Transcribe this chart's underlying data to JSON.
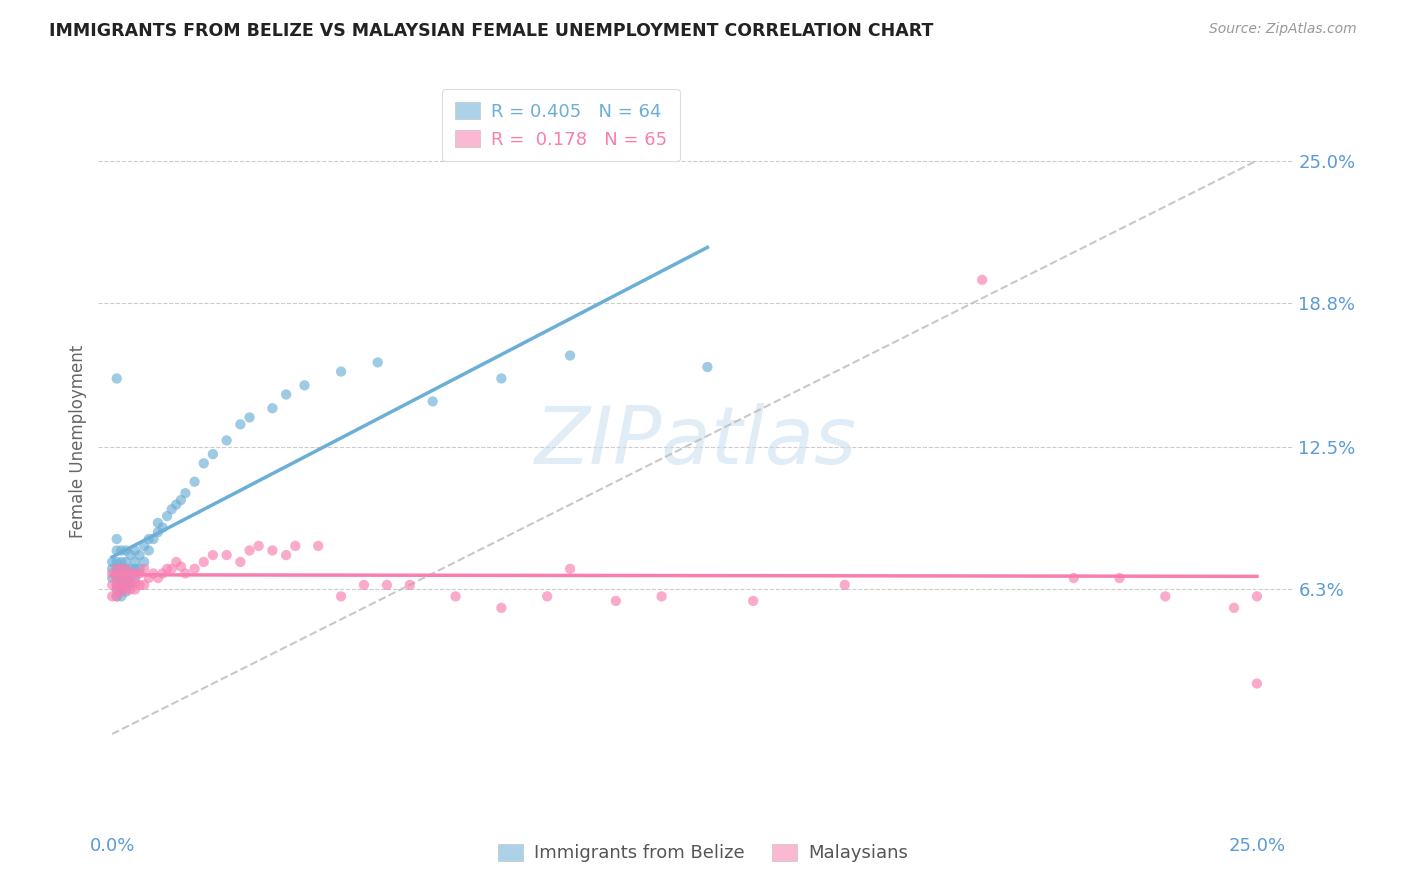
{
  "title": "IMMIGRANTS FROM BELIZE VS MALAYSIAN FEMALE UNEMPLOYMENT CORRELATION CHART",
  "source": "Source: ZipAtlas.com",
  "ylabel": "Female Unemployment",
  "belize_color": "#6baed6",
  "malaysian_color": "#f87eb0",
  "grid_color": "#cccccc",
  "background_color": "#ffffff",
  "title_color": "#222222",
  "axis_label_color": "#5b9bd5",
  "ytick_vals": [
    0.063,
    0.125,
    0.188,
    0.25
  ],
  "ytick_labels": [
    "6.3%",
    "12.5%",
    "18.8%",
    "25.0%"
  ],
  "xmin": 0.0,
  "xmax": 0.25,
  "ymin": -0.03,
  "ymax": 0.285,
  "R_belize": 0.405,
  "N_belize": 64,
  "R_malaysian": 0.178,
  "N_malaysian": 65,
  "watermark_text": "ZIPatlas",
  "belize_x": [
    0.0,
    0.0,
    0.0,
    0.001,
    0.001,
    0.001,
    0.001,
    0.001,
    0.001,
    0.001,
    0.001,
    0.001,
    0.001,
    0.002,
    0.002,
    0.002,
    0.002,
    0.002,
    0.002,
    0.002,
    0.003,
    0.003,
    0.003,
    0.003,
    0.003,
    0.003,
    0.004,
    0.004,
    0.004,
    0.004,
    0.005,
    0.005,
    0.005,
    0.005,
    0.006,
    0.006,
    0.007,
    0.007,
    0.008,
    0.008,
    0.009,
    0.01,
    0.01,
    0.011,
    0.012,
    0.013,
    0.014,
    0.015,
    0.016,
    0.018,
    0.02,
    0.022,
    0.025,
    0.028,
    0.03,
    0.035,
    0.038,
    0.042,
    0.05,
    0.058,
    0.07,
    0.085,
    0.1,
    0.13
  ],
  "belize_y": [
    0.068,
    0.072,
    0.075,
    0.06,
    0.063,
    0.065,
    0.068,
    0.07,
    0.072,
    0.075,
    0.08,
    0.085,
    0.155,
    0.06,
    0.063,
    0.065,
    0.068,
    0.072,
    0.075,
    0.08,
    0.062,
    0.065,
    0.068,
    0.072,
    0.075,
    0.08,
    0.065,
    0.068,
    0.072,
    0.078,
    0.068,
    0.072,
    0.075,
    0.08,
    0.072,
    0.078,
    0.075,
    0.082,
    0.08,
    0.085,
    0.085,
    0.088,
    0.092,
    0.09,
    0.095,
    0.098,
    0.1,
    0.102,
    0.105,
    0.11,
    0.118,
    0.122,
    0.128,
    0.135,
    0.138,
    0.142,
    0.148,
    0.152,
    0.158,
    0.162,
    0.145,
    0.155,
    0.165,
    0.16
  ],
  "malaysian_x": [
    0.0,
    0.0,
    0.0,
    0.001,
    0.001,
    0.001,
    0.001,
    0.001,
    0.002,
    0.002,
    0.002,
    0.002,
    0.003,
    0.003,
    0.003,
    0.003,
    0.004,
    0.004,
    0.004,
    0.005,
    0.005,
    0.005,
    0.006,
    0.006,
    0.007,
    0.007,
    0.008,
    0.009,
    0.01,
    0.011,
    0.012,
    0.013,
    0.014,
    0.015,
    0.016,
    0.018,
    0.02,
    0.022,
    0.025,
    0.028,
    0.03,
    0.032,
    0.035,
    0.038,
    0.04,
    0.045,
    0.05,
    0.055,
    0.06,
    0.065,
    0.075,
    0.085,
    0.095,
    0.1,
    0.11,
    0.12,
    0.14,
    0.16,
    0.19,
    0.21,
    0.22,
    0.23,
    0.245,
    0.25,
    0.25
  ],
  "malaysian_y": [
    0.06,
    0.065,
    0.07,
    0.06,
    0.063,
    0.065,
    0.068,
    0.072,
    0.062,
    0.065,
    0.068,
    0.072,
    0.063,
    0.065,
    0.068,
    0.072,
    0.063,
    0.066,
    0.07,
    0.063,
    0.066,
    0.07,
    0.065,
    0.07,
    0.065,
    0.072,
    0.068,
    0.07,
    0.068,
    0.07,
    0.072,
    0.072,
    0.075,
    0.073,
    0.07,
    0.072,
    0.075,
    0.078,
    0.078,
    0.075,
    0.08,
    0.082,
    0.08,
    0.078,
    0.082,
    0.082,
    0.06,
    0.065,
    0.065,
    0.065,
    0.06,
    0.055,
    0.06,
    0.072,
    0.058,
    0.06,
    0.058,
    0.065,
    0.198,
    0.068,
    0.068,
    0.06,
    0.055,
    0.06,
    0.022
  ]
}
